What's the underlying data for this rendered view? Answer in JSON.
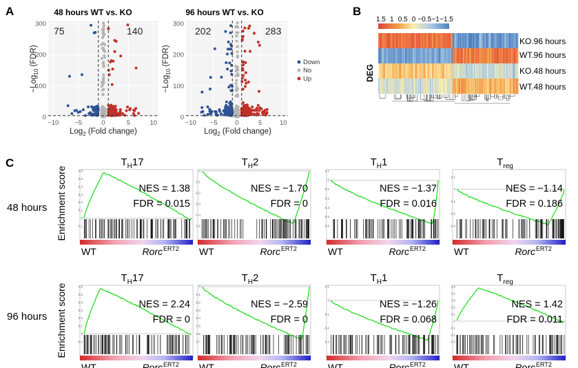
{
  "panels": {
    "A": "A",
    "B": "B",
    "C": "C"
  },
  "colors": {
    "down": "#2f5597",
    "no": "#b4b4b4",
    "up": "#c0302a",
    "curve": "#22dd22"
  },
  "chart_data": [
    {
      "type": "scatter",
      "id": "volcano-48",
      "title": "48 hours WT vs. KO",
      "xlabel_main": "Log",
      "xlabel_sub": "2",
      "xlabel_rest": " (Fold change)",
      "ylabel_main": "−Log",
      "ylabel_sub": "10",
      "ylabel_rest": " (FDR)",
      "xlim": [
        -11,
        11
      ],
      "ylim": [
        0,
        310
      ],
      "xticks": [
        -10,
        -5,
        0,
        5,
        10
      ],
      "yticks": [
        0,
        100,
        200,
        300
      ],
      "xtick_labels": [
        "−10",
        "−5",
        "0",
        "5",
        "10"
      ],
      "ytick_labels": [
        "0",
        "100",
        "200",
        "300"
      ],
      "down_count": "75",
      "up_count": "140",
      "thresholds": {
        "x": [
          -1,
          1
        ],
        "y": 5
      }
    },
    {
      "type": "scatter",
      "id": "volcano-96",
      "title": "96 hours WT vs. KO",
      "xlabel_main": "Log",
      "xlabel_sub": "2",
      "xlabel_rest": " (Fold change)",
      "ylabel_main": "−Log",
      "ylabel_sub": "10",
      "ylabel_rest": " (FDR)",
      "xlim": [
        -11,
        11
      ],
      "ylim": [
        0,
        310
      ],
      "xticks": [
        -10,
        -5,
        0,
        5,
        10
      ],
      "yticks": [
        0,
        100,
        200,
        300
      ],
      "xtick_labels": [
        "−10",
        "−5",
        "0",
        "5",
        "10"
      ],
      "ytick_labels": [
        "0",
        "100",
        "200",
        "300"
      ],
      "down_count": "202",
      "up_count": "283",
      "thresholds": {
        "x": [
          -1,
          1
        ],
        "y": 5
      }
    },
    {
      "type": "heatmap",
      "id": "deg-heatmap",
      "ylabel": "DEG",
      "rows": [
        "KO.96 hours",
        "WT.96 hours",
        "KO.48 hours",
        "WT.48 hours"
      ],
      "scale_ticks": [
        "1.5",
        "1",
        "0.5",
        "0",
        "−0.5",
        "−1",
        "−1.5"
      ],
      "scale_range": [
        1.5,
        -1.5
      ]
    },
    {
      "type": "line",
      "id": "gsea",
      "ylabel": "Enrichment score",
      "row_labels": [
        "48 hours",
        "96 hours"
      ],
      "left_label": "WT",
      "right_label": "Rorc",
      "right_sup": "ERT2",
      "nes_prefix": "NES = ",
      "fdr_prefix": "FDR = ",
      "series": [
        {
          "title": "T",
          "sub": "H",
          "rest": "17",
          "nes": "1.38",
          "fdr": "0.015",
          "ylim": [
            -0.1,
            0.6
          ],
          "yticks": [
            "0.6",
            "0.5",
            "0.4",
            "0.3",
            "0.2",
            "0.1",
            "0",
            "-0.1"
          ],
          "peak_frac": 0.18,
          "end": -0.03
        },
        {
          "title": "T",
          "sub": "H",
          "rest": "2",
          "nes": "−1.70",
          "fdr": "0",
          "ylim": [
            -0.5,
            0.0
          ],
          "yticks": [
            "0",
            "-0.1",
            "-0.2",
            "-0.3",
            "-0.4",
            "-0.5"
          ],
          "peak_frac": 0.85,
          "end": -0.02
        },
        {
          "title": "T",
          "sub": "H",
          "rest": "1",
          "nes": "−1.37",
          "fdr": "0.016",
          "ylim": [
            -0.5,
            0.1
          ],
          "yticks": [
            "0.1",
            "0",
            "-0.1",
            "-0.2",
            "-0.3",
            "-0.4",
            "-0.5"
          ],
          "peak_frac": 0.95,
          "end": -0.05
        },
        {
          "title": "T",
          "sub": "reg",
          "rest": "",
          "nes": "−1.14",
          "fdr": "0.186",
          "ylim": [
            -0.3,
            0.15
          ],
          "yticks": [
            "0.1",
            "0",
            "-0.1",
            "-0.2",
            "-0.3"
          ],
          "peak_frac": 0.85,
          "end": -0.02
        },
        {
          "title": "T",
          "sub": "H",
          "rest": "17",
          "nes": "2.24",
          "fdr": "0",
          "ylim": [
            -0.1,
            0.6
          ],
          "yticks": [
            "0.6",
            "0.5",
            "0.4",
            "0.3",
            "0.2",
            "0.1",
            "0",
            "-0.1"
          ],
          "peak_frac": 0.15,
          "end": -0.02
        },
        {
          "title": "T",
          "sub": "H",
          "rest": "2",
          "nes": "−2.59",
          "fdr": "0",
          "ylim": [
            -0.7,
            0.0
          ],
          "yticks": [
            "0",
            "-0.1",
            "-0.2",
            "-0.3",
            "-0.4",
            "-0.5",
            "-0.6",
            "-0.7"
          ],
          "peak_frac": 0.93,
          "end": -0.02
        },
        {
          "title": "T",
          "sub": "H",
          "rest": "1",
          "nes": "−1.26",
          "fdr": "0.068",
          "ylim": [
            -0.3,
            0.1
          ],
          "yticks": [
            "0.1",
            "0",
            "-0.1",
            "-0.2",
            "-0.3"
          ],
          "peak_frac": 0.9,
          "end": -0.02
        },
        {
          "title": "T",
          "sub": "reg",
          "rest": "",
          "nes": "1.42",
          "fdr": "0.011",
          "ylim": [
            -0.3,
            0.5
          ],
          "yticks": [
            "0.5",
            "0.4",
            "0.3",
            "0.2",
            "0.1",
            "0",
            "-0.1",
            "-0.2",
            "-0.3"
          ],
          "peak_frac": 0.2,
          "end": -0.02
        }
      ]
    }
  ],
  "legend": [
    {
      "label": "Down",
      "color": "#2f5597"
    },
    {
      "label": "No",
      "color": "#b4b4b4"
    },
    {
      "label": "Up",
      "color": "#c0302a"
    }
  ]
}
